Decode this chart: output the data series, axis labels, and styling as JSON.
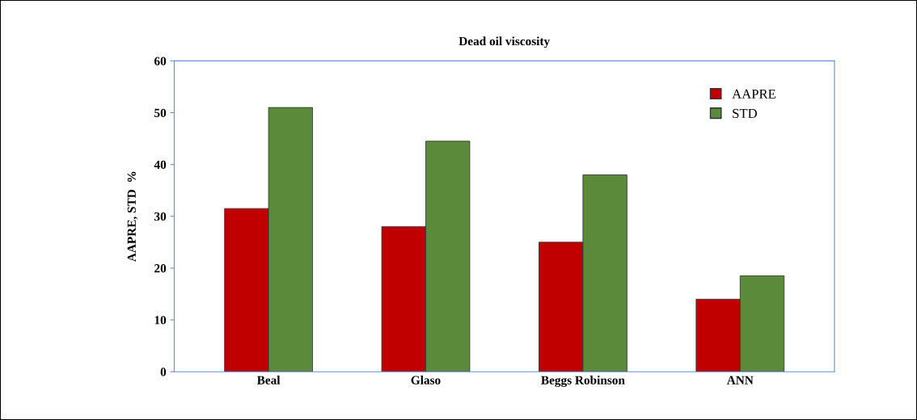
{
  "chart_data": {
    "type": "bar",
    "title": "Dead oil viscosity",
    "ylabel": "AAPRE, STD  %",
    "categories": [
      "Beal",
      "Glaso",
      "Beggs Robinson",
      "ANN"
    ],
    "series": [
      {
        "name": "AAPRE",
        "color": "#c00000",
        "values": [
          31.5,
          28,
          25,
          14
        ]
      },
      {
        "name": "STD",
        "color": "#5b8a3a",
        "values": [
          51,
          44.5,
          38,
          18.5
        ]
      }
    ],
    "ylim": [
      0,
      60
    ],
    "yticks": [
      0,
      10,
      20,
      30,
      40,
      50,
      60
    ],
    "grid": false,
    "legend": "top right"
  }
}
